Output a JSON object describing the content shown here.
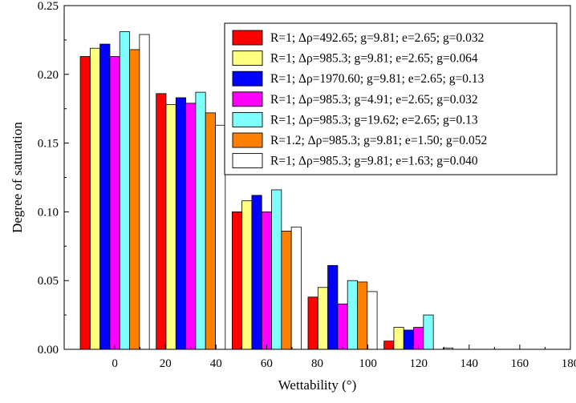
{
  "chart_data": {
    "type": "bar",
    "title": "",
    "xlabel": "Wettability (°)",
    "ylabel": "Degree of saturation",
    "xlim": [
      -20,
      180
    ],
    "ylim": [
      0,
      0.25
    ],
    "x_ticks": [
      "0",
      "20",
      "40",
      "60",
      "80",
      "100",
      "120",
      "140",
      "160",
      "180"
    ],
    "y_ticks": [
      "0.00",
      "0.05",
      "0.10",
      "0.15",
      "0.20",
      "0.25"
    ],
    "categories": [
      0,
      30,
      60,
      90,
      120,
      150,
      180
    ],
    "legend_position": "top-right",
    "grid": false,
    "series": [
      {
        "name": "R=1; Δρ=492.65; g=9.81; e=2.65; g=0.032",
        "color": "#ff0000",
        "values": [
          0.213,
          0.186,
          0.1,
          0.038,
          0.006,
          0,
          0
        ]
      },
      {
        "name": "R=1; Δρ=985.3; g=9.81; e=2.65; g=0.064",
        "color": "#ffff80",
        "values": [
          0.219,
          0.178,
          0.108,
          0.045,
          0.016,
          0,
          0
        ]
      },
      {
        "name": "R=1; Δρ=1970.60; g=9.81; e=2.65; g=0.13",
        "color": "#0000ff",
        "values": [
          0.222,
          0.183,
          0.112,
          0.061,
          0.014,
          0,
          0
        ]
      },
      {
        "name": "R=1; Δρ=985.3; g=4.91; e=2.65; g=0.032",
        "color": "#ff00ff",
        "values": [
          0.213,
          0.179,
          0.1,
          0.033,
          0.016,
          0,
          0
        ]
      },
      {
        "name": "R=1; Δρ=985.3; g=19.62; e=2.65; g=0.13",
        "color": "#80ffff",
        "values": [
          0.231,
          0.187,
          0.116,
          0.05,
          0.025,
          0,
          0
        ]
      },
      {
        "name": "R=1.2; Δρ=985.3; g=9.81; e=1.50; g=0.052",
        "color": "#ff8000",
        "values": [
          0.218,
          0.172,
          0.086,
          0.049,
          0,
          0,
          0
        ]
      },
      {
        "name": "R=1; Δρ=985.3; g=9.81; e=1.63; g=0.040",
        "color": "#ffffff",
        "values": [
          0.229,
          0.163,
          0.089,
          0.042,
          0.001,
          0,
          0
        ]
      }
    ]
  }
}
